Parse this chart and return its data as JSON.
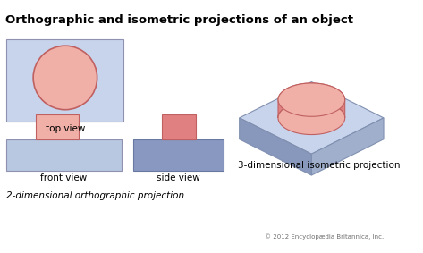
{
  "title": "Orthographic and isometric projections of an object",
  "title_fontsize": 9.5,
  "title_fontweight": "bold",
  "bg_color": "#ffffff",
  "light_blue": "#c8d4ec",
  "med_blue_top": "#a8b8d8",
  "med_blue_right": "#9aaac8",
  "med_blue_left": "#8898bc",
  "side_blue_base": "#8898c0",
  "side_blue_front": "#9aaad0",
  "light_pink": "#f0b0a8",
  "medium_pink": "#e08080",
  "dark_pink": "#d06060",
  "outline_dark": "#606060",
  "pink_outline": "#c06060",
  "front_base_blue": "#b8c8e0",
  "side_base_blue": "#8898c0",
  "label_front": "front view",
  "label_top": "top view",
  "label_side": "side view",
  "label_2d": "2-dimensional orthographic projection",
  "label_3d": "3-dimensional isometric projection",
  "copyright": "© 2012 Encyclopædia Britannica, Inc."
}
